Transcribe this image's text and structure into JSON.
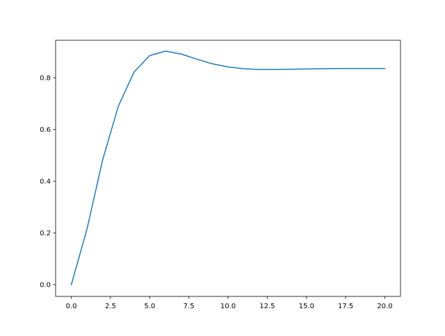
{
  "chart_data": {
    "type": "line",
    "title": "",
    "xlabel": "",
    "ylabel": "",
    "xlim": [
      -1,
      21
    ],
    "ylim": [
      -0.045,
      0.945
    ],
    "xticks": [
      0.0,
      2.5,
      5.0,
      7.5,
      10.0,
      12.5,
      15.0,
      17.5,
      20.0
    ],
    "xtick_labels": [
      "0.0",
      "2.5",
      "5.0",
      "7.5",
      "10.0",
      "12.5",
      "15.0",
      "17.5",
      "20.0"
    ],
    "yticks": [
      0.0,
      0.2,
      0.4,
      0.6,
      0.8
    ],
    "ytick_labels": [
      "0.0",
      "0.2",
      "0.4",
      "0.6",
      "0.8"
    ],
    "grid": false,
    "series": [
      {
        "color": "#1f77b4",
        "x": [
          0,
          1,
          2,
          3,
          4,
          5,
          6,
          7,
          8,
          9,
          10,
          11,
          12,
          13,
          14,
          15,
          16,
          17,
          18,
          19,
          20
        ],
        "y": [
          0.0,
          0.215,
          0.483,
          0.69,
          0.822,
          0.886,
          0.903,
          0.892,
          0.872,
          0.854,
          0.842,
          0.835,
          0.832,
          0.832,
          0.833,
          0.834,
          0.835,
          0.836,
          0.836,
          0.836,
          0.836
        ]
      }
    ]
  }
}
